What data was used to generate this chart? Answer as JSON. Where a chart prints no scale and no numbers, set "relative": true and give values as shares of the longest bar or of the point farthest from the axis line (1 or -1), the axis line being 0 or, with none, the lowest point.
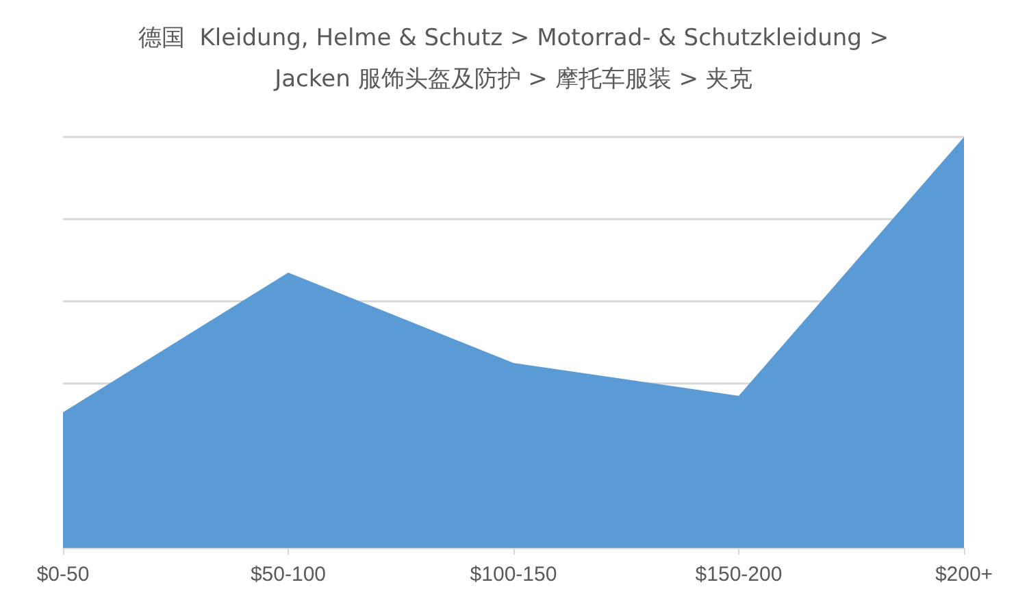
{
  "chart_data": {
    "type": "area",
    "title": "德国  Kleidung, Helme & Schutz > Motorrad- & Schutzkleidung >\nJacken 服饰头盔及防护 > 摩托车服装 > 夹克",
    "categories": [
      "$0-50",
      "$50-100",
      "$100-150",
      "$150-200",
      "$200+"
    ],
    "values": [
      0.33,
      0.67,
      0.45,
      0.37,
      1
    ],
    "color": "#5b9bd5",
    "relative": true,
    "grid": "y"
  }
}
